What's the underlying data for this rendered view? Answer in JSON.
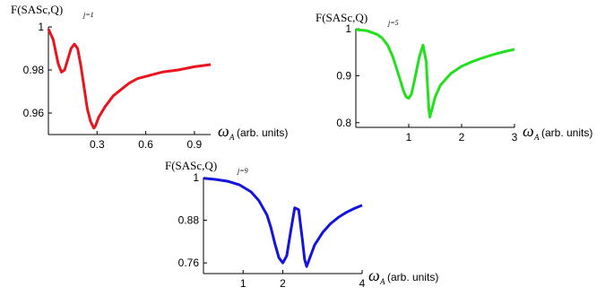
{
  "chart_data": [
    {
      "type": "line",
      "title": "F(SASc,Q)",
      "title_subscript": "j=1",
      "xlabel_symbol": "ω",
      "xlabel_subscript": "A",
      "xlabel_unit": "(arb. units)",
      "xlim": [
        0,
        1.0
      ],
      "ylim": [
        0.95,
        1.0
      ],
      "xticks": [
        0.3,
        0.6,
        0.9
      ],
      "xtick_labels": [
        "0.3",
        "0.6",
        "0.9"
      ],
      "yticks": [
        0.96,
        0.98,
        1.0
      ],
      "ytick_labels": [
        "0.96",
        "0.98",
        "1"
      ],
      "grid": false,
      "series": [
        {
          "color": "#e8141e",
          "x": [
            0.0,
            0.03,
            0.06,
            0.08,
            0.1,
            0.12,
            0.14,
            0.16,
            0.18,
            0.2,
            0.22,
            0.24,
            0.26,
            0.28,
            0.29,
            0.31,
            0.35,
            0.4,
            0.45,
            0.5,
            0.55,
            0.6,
            0.7,
            0.8,
            0.9,
            1.0
          ],
          "y": [
            0.999,
            0.994,
            0.983,
            0.979,
            0.98,
            0.985,
            0.99,
            0.992,
            0.99,
            0.982,
            0.972,
            0.962,
            0.956,
            0.953,
            0.954,
            0.958,
            0.963,
            0.968,
            0.971,
            0.974,
            0.976,
            0.977,
            0.979,
            0.98,
            0.9815,
            0.9825
          ]
        }
      ]
    },
    {
      "type": "line",
      "title": "F(SASc,Q)",
      "title_subscript": "j=5",
      "xlabel_symbol": "ω",
      "xlabel_subscript": "A",
      "xlabel_unit": "(arb. units)",
      "xlim": [
        0,
        3.0
      ],
      "ylim": [
        0.79,
        1.0
      ],
      "xticks": [
        1,
        2,
        3
      ],
      "xtick_labels": [
        "1",
        "2",
        "3"
      ],
      "yticks": [
        0.8,
        0.9,
        1.0
      ],
      "ytick_labels": [
        "0.8",
        "0.9",
        "1"
      ],
      "grid": false,
      "series": [
        {
          "color": "#22e01e",
          "x": [
            0.0,
            0.2,
            0.4,
            0.5,
            0.6,
            0.7,
            0.8,
            0.9,
            0.95,
            1.0,
            1.05,
            1.1,
            1.2,
            1.27,
            1.33,
            1.38,
            1.4,
            1.5,
            1.6,
            1.8,
            2.0,
            2.2,
            2.4,
            2.6,
            2.8,
            3.0
          ],
          "y": [
            0.998,
            0.996,
            0.988,
            0.98,
            0.965,
            0.94,
            0.905,
            0.868,
            0.855,
            0.852,
            0.86,
            0.885,
            0.94,
            0.965,
            0.93,
            0.83,
            0.812,
            0.855,
            0.88,
            0.905,
            0.92,
            0.93,
            0.938,
            0.945,
            0.951,
            0.956
          ]
        }
      ]
    },
    {
      "type": "line",
      "title": "F(SASc,Q)",
      "title_subscript": "j=9",
      "xlabel_symbol": "ω",
      "xlabel_subscript": "A",
      "xlabel_unit": "(arb. units)",
      "xlim": [
        0,
        4.0
      ],
      "ylim": [
        0.73,
        1.0
      ],
      "xticks": [
        1,
        2,
        4
      ],
      "xtick_labels": [
        "1",
        "2",
        "4"
      ],
      "yticks": [
        0.76,
        0.88,
        1.0
      ],
      "ytick_labels": [
        "0.76",
        "0.88",
        "1"
      ],
      "grid": false,
      "series": [
        {
          "color": "#1414dc",
          "x": [
            0.0,
            0.3,
            0.6,
            0.9,
            1.2,
            1.4,
            1.6,
            1.7,
            1.8,
            1.9,
            2.0,
            2.1,
            2.2,
            2.3,
            2.4,
            2.5,
            2.55,
            2.6,
            2.7,
            2.8,
            3.0,
            3.2,
            3.4,
            3.6,
            3.8,
            4.0
          ],
          "y": [
            0.998,
            0.995,
            0.99,
            0.98,
            0.96,
            0.935,
            0.895,
            0.86,
            0.815,
            0.775,
            0.76,
            0.78,
            0.85,
            0.915,
            0.91,
            0.82,
            0.77,
            0.75,
            0.78,
            0.81,
            0.845,
            0.87,
            0.888,
            0.902,
            0.913,
            0.922
          ]
        }
      ]
    }
  ]
}
